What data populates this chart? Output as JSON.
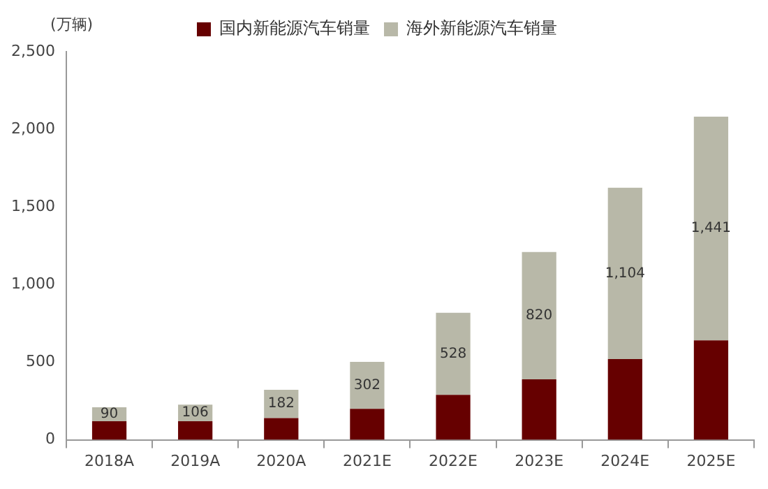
{
  "chart_data": {
    "type": "bar",
    "stacked": true,
    "ylabel": "(万辆)",
    "categories": [
      "2018A",
      "2019A",
      "2020A",
      "2021E",
      "2022E",
      "2023E",
      "2024E",
      "2025E"
    ],
    "series": [
      {
        "name": "国内新能源汽车销量",
        "color": "#660000",
        "values": [
          120,
          120,
          140,
          200,
          290,
          390,
          520,
          640
        ]
      },
      {
        "name": "海外新能源汽车销量",
        "color": "#b8b8a8",
        "values": [
          90,
          106,
          182,
          302,
          528,
          820,
          1104,
          1441
        ],
        "value_labels": [
          "90",
          "106",
          "182",
          "302",
          "528",
          "820",
          "1,104",
          "1,441"
        ]
      }
    ],
    "ylim": [
      0,
      2500
    ],
    "yticks": [
      {
        "value": 0,
        "label": "0"
      },
      {
        "value": 500,
        "label": "500"
      },
      {
        "value": 1000,
        "label": "1,000"
      },
      {
        "value": 1500,
        "label": "1,500"
      },
      {
        "value": 2000,
        "label": "2,000"
      },
      {
        "value": 2500,
        "label": "2,500"
      }
    ],
    "grid": false,
    "legend": "top"
  }
}
